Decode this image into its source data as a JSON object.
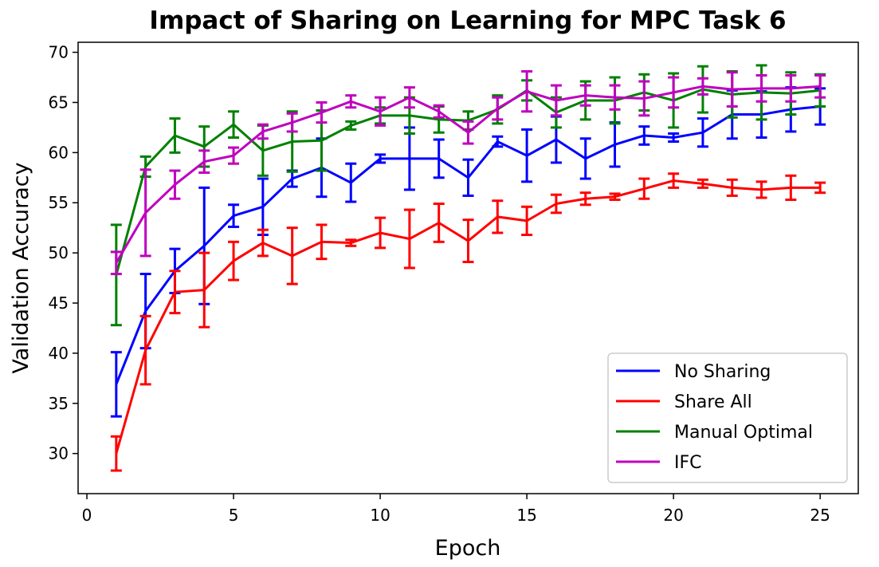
{
  "chart_data": {
    "type": "line",
    "title": "Impact of Sharing on Learning for MPC Task 6",
    "xlabel": "Epoch",
    "ylabel": "Validation Accuracy",
    "xlim": [
      -0.3,
      26.3
    ],
    "ylim": [
      26,
      71
    ],
    "x_ticks": [
      0,
      5,
      10,
      15,
      20,
      25
    ],
    "y_ticks": [
      30,
      35,
      40,
      45,
      50,
      55,
      60,
      65,
      70
    ],
    "grid": false,
    "legend_position": "lower-right",
    "x": [
      1,
      2,
      3,
      4,
      5,
      6,
      7,
      8,
      9,
      10,
      11,
      12,
      13,
      14,
      15,
      16,
      17,
      18,
      19,
      20,
      21,
      22,
      23,
      24,
      25
    ],
    "series": [
      {
        "name": "No Sharing",
        "color": "#0000ff",
        "values": [
          36.9,
          44.2,
          48.2,
          50.7,
          53.7,
          54.6,
          57.4,
          58.5,
          57.0,
          59.4,
          59.4,
          59.4,
          57.5,
          61.1,
          59.7,
          61.3,
          59.4,
          60.8,
          61.7,
          61.5,
          62.0,
          63.8,
          63.8,
          64.3,
          64.6
        ],
        "errors": [
          3.2,
          3.7,
          2.2,
          5.8,
          1.1,
          2.8,
          0.8,
          2.9,
          1.9,
          0.4,
          3.1,
          1.9,
          1.8,
          0.5,
          2.6,
          2.3,
          2.0,
          2.2,
          0.9,
          0.4,
          1.4,
          2.4,
          2.3,
          2.2,
          1.8
        ]
      },
      {
        "name": "Share All",
        "color": "#ff0000",
        "values": [
          30.0,
          40.3,
          46.1,
          46.3,
          49.2,
          51.0,
          49.7,
          51.1,
          51.0,
          52.0,
          51.4,
          53.0,
          51.2,
          53.6,
          53.2,
          54.9,
          55.4,
          55.6,
          56.4,
          57.2,
          56.9,
          56.5,
          56.3,
          56.5,
          56.5
        ],
        "errors": [
          1.7,
          3.4,
          2.1,
          3.7,
          1.9,
          1.3,
          2.8,
          1.7,
          0.3,
          1.5,
          2.9,
          1.9,
          2.1,
          1.6,
          1.4,
          0.9,
          0.6,
          0.3,
          1.0,
          0.7,
          0.4,
          0.8,
          0.8,
          1.2,
          0.5
        ]
      },
      {
        "name": "Manual Optimal",
        "color": "#008000",
        "values": [
          47.8,
          58.6,
          61.7,
          60.6,
          62.8,
          60.2,
          61.1,
          61.2,
          62.7,
          63.7,
          63.7,
          63.3,
          63.2,
          64.3,
          66.2,
          64.0,
          65.2,
          65.2,
          66.0,
          65.2,
          66.3,
          65.8,
          66.0,
          65.9,
          66.2
        ],
        "errors": [
          5.0,
          1.0,
          1.7,
          2.0,
          1.3,
          2.5,
          3.0,
          3.0,
          0.4,
          0.8,
          1.8,
          1.3,
          0.9,
          1.4,
          1.0,
          1.5,
          1.9,
          2.3,
          1.8,
          2.7,
          2.3,
          2.3,
          2.7,
          2.1,
          1.6
        ]
      },
      {
        "name": "IFC",
        "color": "#bf00bf",
        "values": [
          49.0,
          54.0,
          56.8,
          59.1,
          59.7,
          62.1,
          63.0,
          64.0,
          65.1,
          64.1,
          65.5,
          64.1,
          62.0,
          64.4,
          66.1,
          65.2,
          65.7,
          65.5,
          65.4,
          66.0,
          66.6,
          66.3,
          66.4,
          66.4,
          66.6
        ],
        "errors": [
          1.1,
          4.3,
          1.4,
          1.1,
          0.8,
          0.7,
          0.9,
          1.0,
          0.6,
          1.4,
          1.0,
          0.6,
          1.1,
          1.1,
          2.0,
          1.5,
          1.0,
          1.2,
          1.7,
          1.5,
          0.8,
          1.7,
          1.3,
          1.3,
          1.1
        ]
      }
    ]
  }
}
